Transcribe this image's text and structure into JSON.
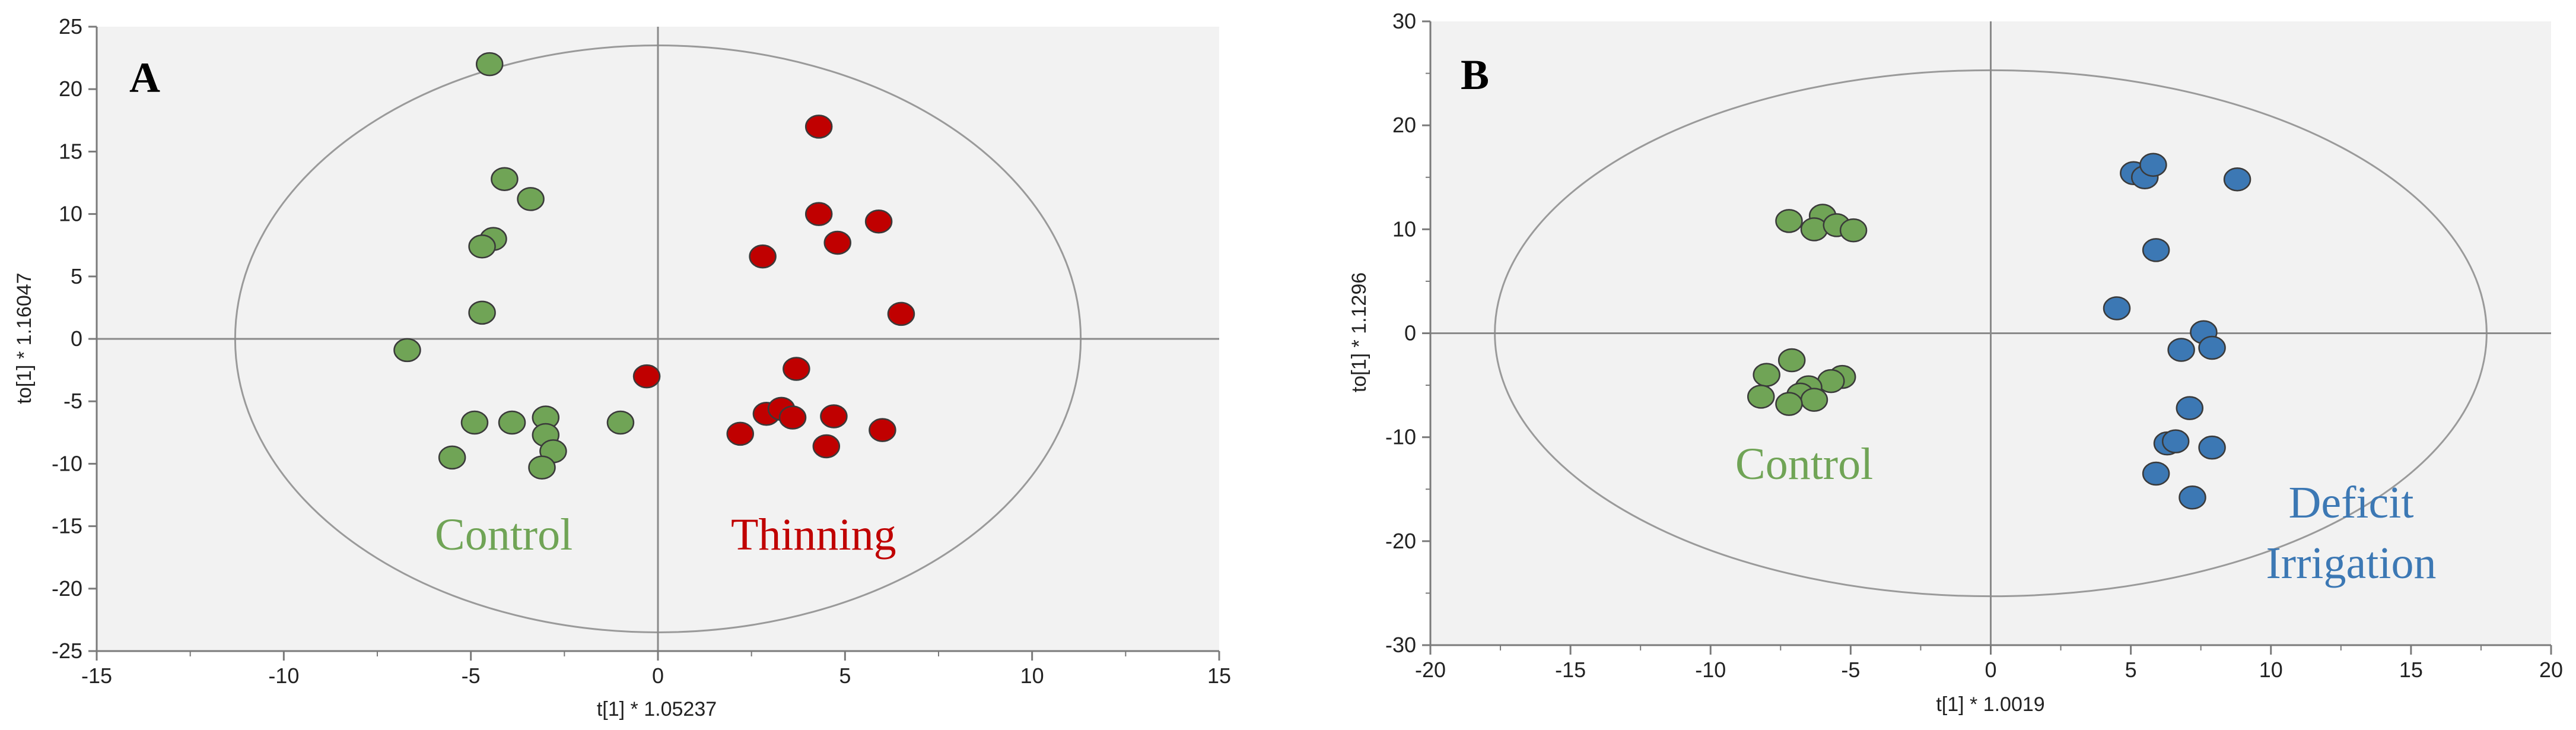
{
  "chart_data": [
    {
      "type": "scatter",
      "panel_label": "A",
      "xlabel": "t[1] * 1.05237",
      "ylabel": "to[1] * 1.16047",
      "xlim": [
        -15,
        15
      ],
      "ylim": [
        -25,
        25
      ],
      "xticks": [
        -15,
        -10,
        -5,
        0,
        5,
        10,
        15
      ],
      "yticks": [
        -25,
        -20,
        -15,
        -10,
        -5,
        0,
        5,
        10,
        15,
        20,
        25
      ],
      "grid": false,
      "background_color": "#f2f2f2",
      "ellipse": {
        "cx": 0,
        "cy": 0,
        "rx": 11.3,
        "ry": 23.5
      },
      "series": [
        {
          "name": "Control",
          "color": "#70a456",
          "points": [
            {
              "x": -4.5,
              "y": 22.0
            },
            {
              "x": -4.1,
              "y": 12.8
            },
            {
              "x": -3.4,
              "y": 11.2
            },
            {
              "x": -4.4,
              "y": 8.0
            },
            {
              "x": -4.7,
              "y": 7.4
            },
            {
              "x": -4.7,
              "y": 2.1
            },
            {
              "x": -6.7,
              "y": -0.9
            },
            {
              "x": -4.9,
              "y": -6.7
            },
            {
              "x": -3.9,
              "y": -6.7
            },
            {
              "x": -3.0,
              "y": -6.3
            },
            {
              "x": -1.0,
              "y": -6.7
            },
            {
              "x": -3.0,
              "y": -7.7
            },
            {
              "x": -2.8,
              "y": -9.0
            },
            {
              "x": -5.5,
              "y": -9.5
            },
            {
              "x": -3.1,
              "y": -10.3
            }
          ]
        },
        {
          "name": "Thinning",
          "color": "#c00000",
          "points": [
            {
              "x": 4.3,
              "y": 17.0
            },
            {
              "x": 4.3,
              "y": 10.0
            },
            {
              "x": 5.9,
              "y": 9.4
            },
            {
              "x": 2.8,
              "y": 6.6
            },
            {
              "x": 4.8,
              "y": 7.7
            },
            {
              "x": 6.5,
              "y": 2.0
            },
            {
              "x": -0.3,
              "y": -3.0
            },
            {
              "x": 3.7,
              "y": -2.4
            },
            {
              "x": 2.9,
              "y": -6.0
            },
            {
              "x": 3.3,
              "y": -5.6
            },
            {
              "x": 3.6,
              "y": -6.3
            },
            {
              "x": 4.7,
              "y": -6.2
            },
            {
              "x": 2.2,
              "y": -7.6
            },
            {
              "x": 4.5,
              "y": -8.6
            },
            {
              "x": 6.0,
              "y": -7.3
            }
          ]
        }
      ],
      "annotations": [
        {
          "text": "Control",
          "color": "#70a456"
        },
        {
          "text": "Thinning",
          "color": "#c00000"
        }
      ]
    },
    {
      "type": "scatter",
      "panel_label": "B",
      "xlabel": "t[1] * 1.0019",
      "ylabel": "to[1] * 1.1296",
      "xlim": [
        -20,
        20
      ],
      "ylim": [
        -30,
        30
      ],
      "xticks": [
        -20,
        -15,
        -10,
        -5,
        0,
        5,
        10,
        15,
        20
      ],
      "yticks": [
        -30,
        -20,
        -10,
        0,
        10,
        20,
        30
      ],
      "grid": false,
      "background_color": "#f2f2f2",
      "ellipse": {
        "cx": 0,
        "cy": 0,
        "rx": 17.7,
        "ry": 25.3
      },
      "series": [
        {
          "name": "Control",
          "color": "#70a456",
          "points": [
            {
              "x": -7.2,
              "y": 10.8
            },
            {
              "x": -6.0,
              "y": 11.3
            },
            {
              "x": -6.3,
              "y": 10.0
            },
            {
              "x": -5.5,
              "y": 10.4
            },
            {
              "x": -4.9,
              "y": 9.9
            },
            {
              "x": -7.1,
              "y": -2.6
            },
            {
              "x": -8.0,
              "y": -4.0
            },
            {
              "x": -5.3,
              "y": -4.2
            },
            {
              "x": -5.7,
              "y": -4.6
            },
            {
              "x": -6.5,
              "y": -5.2
            },
            {
              "x": -6.8,
              "y": -5.9
            },
            {
              "x": -8.2,
              "y": -6.1
            },
            {
              "x": -6.3,
              "y": -6.4
            },
            {
              "x": -7.2,
              "y": -6.8
            }
          ]
        },
        {
          "name": "Deficit Irrigation",
          "color": "#3c78b4",
          "points": [
            {
              "x": 5.1,
              "y": 15.4
            },
            {
              "x": 5.5,
              "y": 15.0
            },
            {
              "x": 5.8,
              "y": 16.2
            },
            {
              "x": 8.8,
              "y": 14.8
            },
            {
              "x": 5.9,
              "y": 8.0
            },
            {
              "x": 4.5,
              "y": 2.4
            },
            {
              "x": 7.6,
              "y": 0.1
            },
            {
              "x": 6.8,
              "y": -1.6
            },
            {
              "x": 7.9,
              "y": -1.4
            },
            {
              "x": 7.1,
              "y": -7.2
            },
            {
              "x": 6.3,
              "y": -10.6
            },
            {
              "x": 6.6,
              "y": -10.4
            },
            {
              "x": 7.9,
              "y": -11.0
            },
            {
              "x": 5.9,
              "y": -13.5
            },
            {
              "x": 7.2,
              "y": -15.8
            }
          ]
        }
      ],
      "annotations": [
        {
          "text": "Control",
          "color": "#70a456"
        },
        {
          "text": "Deficit",
          "color": "#3c78b4"
        },
        {
          "text": "Irrigation",
          "color": "#3c78b4"
        }
      ]
    }
  ]
}
